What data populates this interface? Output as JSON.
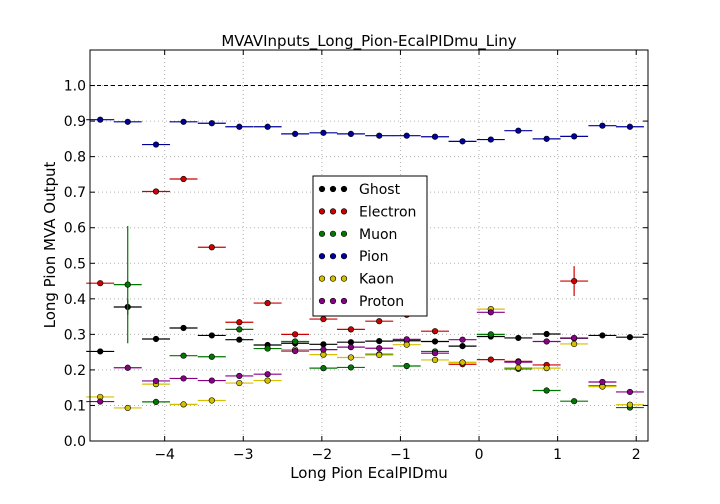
{
  "chart_data": {
    "type": "scatter",
    "title": "MVAVInputs_Long_Pion-EcalPIDmu_Liny",
    "xlabel": "Long Pion EcalPIDmu",
    "ylabel": "Long Pion MVA Output",
    "xlim": [
      -4.95,
      2.15
    ],
    "ylim": [
      0.0,
      1.1
    ],
    "xticks": [
      -4,
      -3,
      -2,
      -1,
      0,
      1,
      2
    ],
    "xtick_labels": [
      "−4",
      "−3",
      "−2",
      "−1",
      "0",
      "1",
      "2"
    ],
    "yticks": [
      0.0,
      0.1,
      0.2,
      0.3,
      0.4,
      0.5,
      0.6,
      0.7,
      0.8,
      0.9,
      1.0
    ],
    "ytick_labels": [
      "0.0",
      "0.1",
      "0.2",
      "0.3",
      "0.4",
      "0.5",
      "0.6",
      "0.7",
      "0.8",
      "0.9",
      "1.0"
    ],
    "grid": true,
    "reference_line": 1.0,
    "legend_position": "center",
    "x": [
      -4.82,
      -4.47,
      -4.11,
      -3.76,
      -3.4,
      -3.05,
      -2.69,
      -2.34,
      -1.98,
      -1.63,
      -1.27,
      -0.92,
      -0.56,
      -0.21,
      0.15,
      0.5,
      0.86,
      1.21,
      1.57,
      1.92
    ],
    "bin_halfwidth": 0.178,
    "series": [
      {
        "name": "Ghost",
        "color": "#000000",
        "values": [
          0.252,
          0.377,
          0.287,
          0.318,
          0.297,
          0.285,
          0.27,
          0.275,
          0.272,
          0.278,
          0.281,
          0.282,
          0.28,
          0.267,
          0.294,
          0.29,
          0.301,
          0.289,
          0.297,
          0.292
        ],
        "errors": {
          "1": 0.022
        }
      },
      {
        "name": "Electron",
        "color": "#cc0000",
        "values": [
          0.444,
          null,
          0.702,
          0.737,
          0.545,
          0.334,
          0.388,
          0.3,
          0.343,
          0.314,
          0.337,
          0.355,
          0.309,
          0.216,
          0.229,
          0.224,
          0.214,
          0.45,
          null,
          null
        ],
        "errors": {
          "17": 0.042
        }
      },
      {
        "name": "Muon",
        "color": "#007700",
        "values": [
          null,
          0.44,
          0.11,
          0.24,
          0.237,
          0.314,
          0.26,
          0.28,
          0.205,
          0.207,
          0.244,
          0.211,
          0.252,
          0.221,
          0.3,
          0.203,
          0.142,
          0.112,
          0.155,
          0.094
        ],
        "errors": {
          "1": 0.165
        }
      },
      {
        "name": "Pion",
        "color": "#000099",
        "values": [
          0.904,
          0.898,
          0.834,
          0.898,
          0.894,
          0.884,
          0.884,
          0.864,
          0.867,
          0.864,
          0.859,
          0.859,
          0.856,
          0.843,
          0.848,
          0.873,
          0.85,
          0.857,
          0.887,
          0.884
        ],
        "errors": {}
      },
      {
        "name": "Kaon",
        "color": "#d4c000",
        "values": [
          0.124,
          0.093,
          0.16,
          0.103,
          0.114,
          0.163,
          0.17,
          0.257,
          0.243,
          0.235,
          0.242,
          0.271,
          0.228,
          0.221,
          0.371,
          0.206,
          0.205,
          0.273,
          0.153,
          0.102
        ],
        "errors": {}
      },
      {
        "name": "Proton",
        "color": "#880088",
        "values": [
          0.111,
          0.206,
          0.169,
          0.176,
          0.17,
          0.183,
          0.188,
          0.253,
          0.257,
          0.264,
          0.261,
          0.286,
          0.247,
          0.285,
          0.362,
          0.222,
          0.28,
          0.29,
          0.166,
          0.138
        ],
        "errors": {}
      }
    ]
  }
}
